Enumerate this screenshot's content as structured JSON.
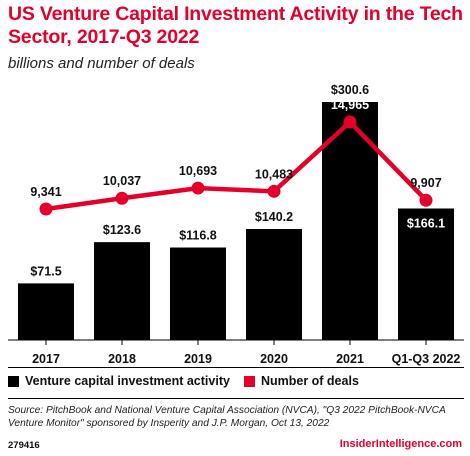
{
  "chart_data": {
    "type": "bar",
    "title": "US Venture Capital Investment Activity in the Tech Sector, 2017-Q3 2022",
    "subtitle": "billions and number of deals",
    "categories": [
      "2017",
      "2018",
      "2019",
      "2020",
      "2021",
      "Q1-Q3 2022"
    ],
    "series": [
      {
        "name": "Venture capital investment activity",
        "type": "bar",
        "values": [
          71.5,
          123.6,
          116.8,
          140.2,
          300.6,
          166.1
        ],
        "labels": [
          "$71.5",
          "$123.6",
          "$116.8",
          "$140.2",
          "$300.6",
          "$166.1"
        ],
        "color": "#000000"
      },
      {
        "name": "Number of deals",
        "type": "line",
        "values": [
          9341,
          10037,
          10693,
          10483,
          14965,
          9907
        ],
        "labels": [
          "9,341",
          "10,037",
          "10,693",
          "10,483",
          "14,965",
          "9,907"
        ],
        "color": "#e4002b"
      }
    ],
    "legend_position": "bottom-left",
    "grid": false
  },
  "footer": {
    "source": "Source: PitchBook and National Venture Capital Association (NVCA), \"Q3 2022 PitchBook-NVCA Venture Monitor\" sponsored by Insperity and J.P. Morgan, Oct 13, 2022",
    "chart_id": "279416",
    "brand": "InsiderIntelligence.com"
  }
}
